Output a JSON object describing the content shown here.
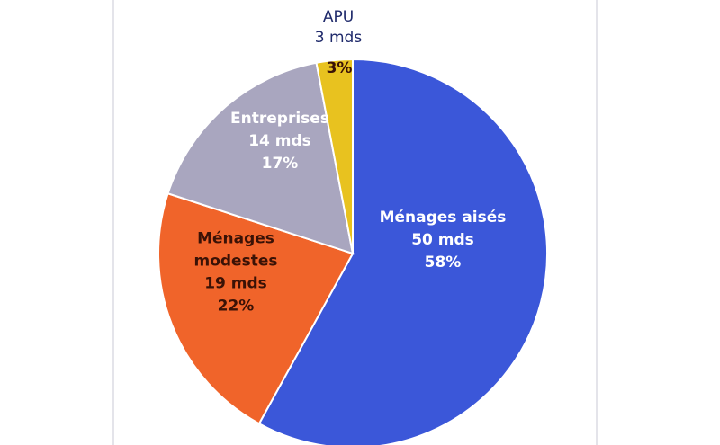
{
  "chart_data": {
    "type": "pie",
    "title": "",
    "unit": "mds",
    "slices": [
      {
        "label": "Ménages aisés",
        "amount": "50 mds",
        "value": 58,
        "percent": "58%",
        "color": "#3b57d9",
        "text_color": "#ffffff"
      },
      {
        "label": "Ménages modestes",
        "amount": "19 mds",
        "value": 22,
        "percent": "22%",
        "color": "#f0642a",
        "text_color": "#3a1206"
      },
      {
        "label": "Entreprises",
        "amount": "14 mds",
        "value": 17,
        "percent": "17%",
        "color": "#a9a6bf",
        "text_color": "#ffffff"
      },
      {
        "label": "APU",
        "amount": "3 mds",
        "value": 3,
        "percent": "3%",
        "color": "#e8c21f",
        "text_color": "#1f2a6b"
      }
    ],
    "start": "12 o'clock",
    "direction": "clockwise",
    "legend": "none"
  }
}
